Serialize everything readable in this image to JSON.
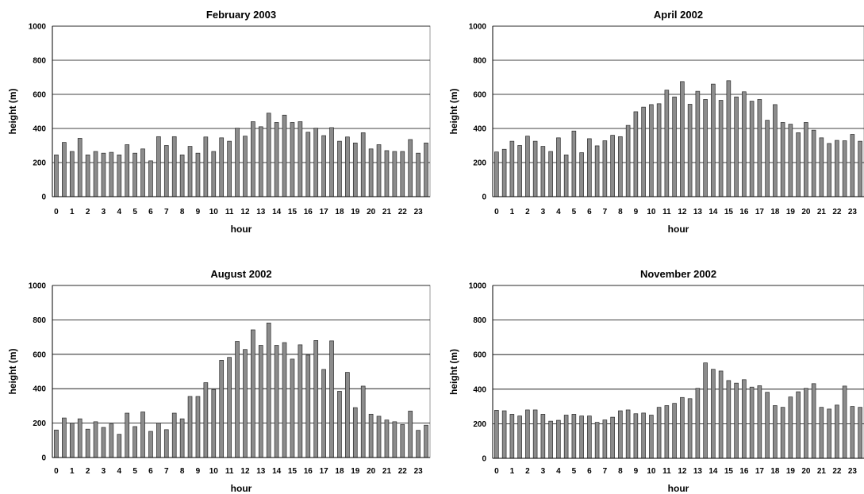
{
  "chart_data": [
    {
      "type": "bar",
      "title": "February 2003",
      "xlabel": "hour",
      "ylabel": "height (m)",
      "ylim": [
        0,
        1000
      ],
      "yticks": [
        "0",
        "200",
        "400",
        "600",
        "800",
        "1000"
      ],
      "xticks": [
        "0",
        "1",
        "2",
        "3",
        "4",
        "5",
        "6",
        "7",
        "8",
        "9",
        "10",
        "11",
        "12",
        "13",
        "14",
        "15",
        "16",
        "17",
        "18",
        "19",
        "20",
        "21",
        "22",
        "23"
      ],
      "grid": true,
      "values": [
        245,
        318,
        265,
        342,
        245,
        265,
        255,
        260,
        245,
        305,
        255,
        280,
        210,
        352,
        300,
        352,
        245,
        295,
        255,
        350,
        265,
        345,
        325,
        402,
        355,
        440,
        410,
        490,
        435,
        478,
        435,
        440,
        378,
        402,
        358,
        405,
        325,
        350,
        315,
        375,
        280,
        305,
        270,
        265,
        265,
        335,
        255,
        315
      ]
    },
    {
      "type": "bar",
      "title": "April 2002",
      "xlabel": "hour",
      "ylabel": "height (m)",
      "ylim": [
        0,
        1000
      ],
      "yticks": [
        "0",
        "200",
        "400",
        "600",
        "800",
        "1000"
      ],
      "xticks": [
        "0",
        "1",
        "2",
        "3",
        "4",
        "5",
        "6",
        "7",
        "8",
        "9",
        "10",
        "11",
        "12",
        "13",
        "14",
        "15",
        "16",
        "17",
        "18",
        "19",
        "20",
        "21",
        "22",
        "23"
      ],
      "grid": true,
      "values": [
        262,
        278,
        325,
        300,
        355,
        325,
        295,
        265,
        345,
        245,
        385,
        258,
        340,
        298,
        328,
        360,
        352,
        418,
        498,
        525,
        540,
        545,
        625,
        585,
        675,
        542,
        618,
        570,
        660,
        565,
        680,
        585,
        615,
        560,
        570,
        448,
        540,
        435,
        425,
        375,
        435,
        390,
        345,
        312,
        330,
        328,
        365,
        325
      ]
    },
    {
      "type": "bar",
      "title": "August 2002",
      "xlabel": "hour",
      "ylabel": "height (m)",
      "ylim": [
        0,
        1000
      ],
      "yticks": [
        "0",
        "200",
        "400",
        "600",
        "800",
        "1000"
      ],
      "xticks": [
        "0",
        "1",
        "2",
        "3",
        "4",
        "5",
        "6",
        "7",
        "8",
        "9",
        "10",
        "11",
        "12",
        "13",
        "14",
        "15",
        "16",
        "17",
        "18",
        "19",
        "20",
        "21",
        "22",
        "23"
      ],
      "grid": true,
      "values": [
        160,
        230,
        200,
        225,
        165,
        208,
        175,
        195,
        135,
        258,
        180,
        265,
        152,
        200,
        162,
        258,
        225,
        355,
        355,
        435,
        395,
        565,
        582,
        675,
        628,
        742,
        652,
        782,
        652,
        668,
        572,
        655,
        595,
        680,
        512,
        678,
        385,
        495,
        290,
        415,
        252,
        240,
        218,
        208,
        192,
        270,
        158,
        188
      ]
    },
    {
      "type": "bar",
      "title": "November 2002",
      "xlabel": "hour",
      "ylabel": "height (m)",
      "ylim": [
        0,
        1000
      ],
      "yticks": [
        "0",
        "200",
        "400",
        "600",
        "800",
        "1000"
      ],
      "xticks": [
        "0",
        "1",
        "2",
        "3",
        "4",
        "5",
        "6",
        "7",
        "8",
        "9",
        "10",
        "11",
        "12",
        "13",
        "14",
        "15",
        "16",
        "17",
        "18",
        "19",
        "20",
        "21",
        "22",
        "23"
      ],
      "grid": true,
      "values": [
        278,
        275,
        255,
        245,
        280,
        280,
        255,
        215,
        220,
        250,
        255,
        245,
        245,
        208,
        222,
        238,
        275,
        280,
        258,
        262,
        250,
        295,
        305,
        318,
        352,
        345,
        405,
        552,
        515,
        505,
        450,
        435,
        455,
        412,
        420,
        382,
        305,
        295,
        355,
        385,
        405,
        432,
        295,
        285,
        308,
        418,
        300,
        295
      ]
    }
  ]
}
